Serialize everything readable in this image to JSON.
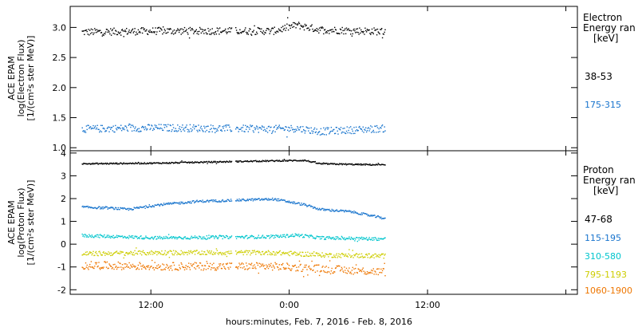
{
  "chart_data": [
    {
      "type": "scatter",
      "ylabel_lines": [
        "ACE EPAM",
        "log(Electron Flux)",
        "[1/(cm²s ster MeV)]"
      ],
      "ylim": [
        0.95,
        3.35
      ],
      "yticks": [
        1.0,
        1.5,
        2.0,
        2.5,
        3.0
      ],
      "ytick_labels": [
        "1.0",
        "1.5",
        "2.0",
        "2.5",
        "3.0"
      ],
      "legend_title": [
        "Electron",
        "Energy ran",
        "[keV]"
      ],
      "legend_placement": "right",
      "series": [
        {
          "name": "38-53",
          "color": "#000000",
          "mean": 2.95,
          "scatter": 0.06,
          "profile": [
            [
              0,
              2.93
            ],
            [
              20,
              2.95
            ],
            [
              50,
              2.95
            ],
            [
              56,
              3.05
            ],
            [
              58,
              3.02
            ],
            [
              62,
              2.97
            ],
            [
              79,
              2.94
            ]
          ]
        },
        {
          "name": "175-315",
          "color": "#1874cd",
          "mean": 1.32,
          "scatter": 0.06,
          "profile": [
            [
              0,
              1.32
            ],
            [
              20,
              1.34
            ],
            [
              50,
              1.32
            ],
            [
              56,
              1.33
            ],
            [
              62,
              1.28
            ],
            [
              79,
              1.33
            ]
          ]
        }
      ]
    },
    {
      "type": "scatter",
      "ylabel_lines": [
        "ACE EPAM",
        "log(Proton Flux)",
        "[1/(cm²s ster MeV)]"
      ],
      "ylim": [
        -2.2,
        4.1
      ],
      "yticks": [
        -2,
        -1,
        0,
        1,
        2,
        3,
        4
      ],
      "ytick_labels": [
        "-2",
        "-1",
        "0",
        "1",
        "2",
        "3",
        "4"
      ],
      "legend_title": [
        "Proton",
        "Energy ran",
        "[keV]"
      ],
      "legend_placement": "right",
      "series": [
        {
          "name": "47-68",
          "color": "#000000",
          "mean": 3.55,
          "scatter": 0.03,
          "profile": [
            [
              0,
              3.55
            ],
            [
              20,
              3.58
            ],
            [
              40,
              3.65
            ],
            [
              50,
              3.68
            ],
            [
              58,
              3.7
            ],
            [
              62,
              3.55
            ],
            [
              79,
              3.5
            ]
          ]
        },
        {
          "name": "115-195",
          "color": "#1874cd",
          "mean": 1.7,
          "scatter": 0.05,
          "profile": [
            [
              0,
              1.65
            ],
            [
              8,
              1.6
            ],
            [
              12,
              1.55
            ],
            [
              20,
              1.75
            ],
            [
              30,
              1.9
            ],
            [
              40,
              1.95
            ],
            [
              50,
              2.0
            ],
            [
              58,
              1.75
            ],
            [
              62,
              1.55
            ],
            [
              70,
              1.45
            ],
            [
              79,
              1.15
            ]
          ]
        },
        {
          "name": "310-580",
          "color": "#00c5cd",
          "mean": 0.35,
          "scatter": 0.07,
          "profile": [
            [
              0,
              0.4
            ],
            [
              20,
              0.3
            ],
            [
              50,
              0.35
            ],
            [
              56,
              0.42
            ],
            [
              62,
              0.3
            ],
            [
              79,
              0.25
            ]
          ]
        },
        {
          "name": "795-1193",
          "color": "#cdcd00",
          "mean": -0.4,
          "scatter": 0.1,
          "profile": [
            [
              0,
              -0.4
            ],
            [
              20,
              -0.35
            ],
            [
              50,
              -0.35
            ],
            [
              62,
              -0.45
            ],
            [
              79,
              -0.5
            ]
          ]
        },
        {
          "name": "1060-1900",
          "color": "#ee7600",
          "mean": -0.95,
          "scatter": 0.17,
          "profile": [
            [
              0,
              -0.9
            ],
            [
              20,
              -0.95
            ],
            [
              50,
              -0.95
            ],
            [
              62,
              -1.05
            ],
            [
              79,
              -1.2
            ]
          ]
        }
      ]
    }
  ],
  "x_axis": {
    "label": "hours:minutes, Feb.  7, 2016 - Feb.  8, 2016",
    "xlim_hours": [
      -1,
      43
    ],
    "ticks_hours": [
      6,
      18,
      30,
      42
    ],
    "tick_labels": [
      "12:00",
      "0:00",
      "12:00"
    ],
    "labeled_ticks_hours": [
      6,
      18,
      30
    ],
    "data_start_hours": 0,
    "data_end_hours": 26.3,
    "gap_hours": [
      13.0,
      13.3
    ]
  }
}
